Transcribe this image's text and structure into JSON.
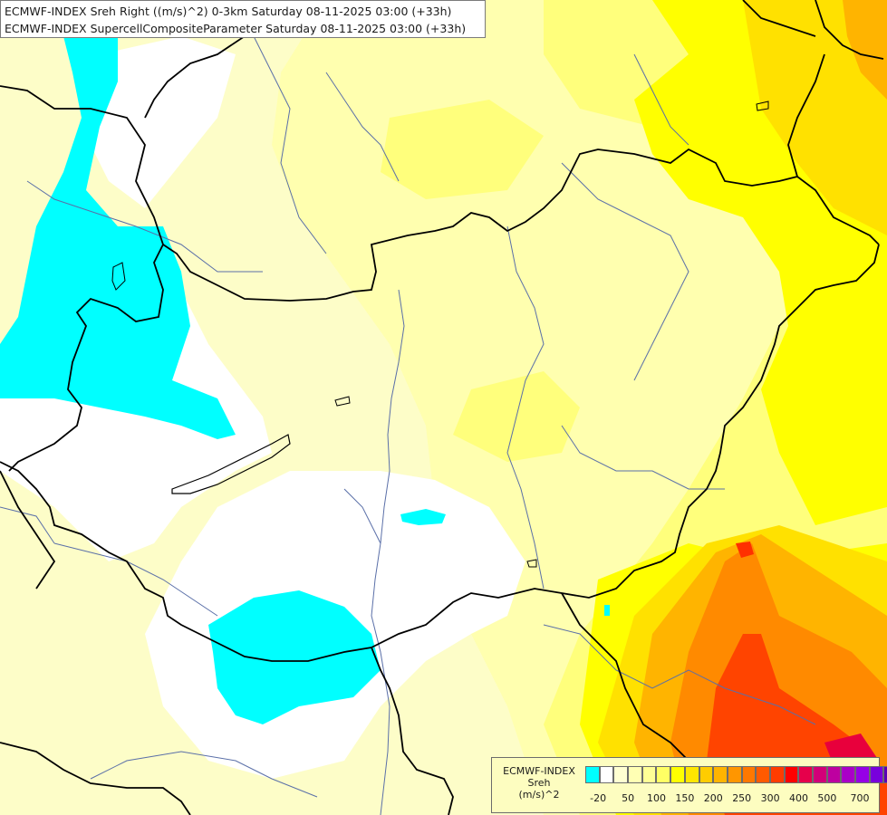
{
  "title": {
    "line1": "ECMWF-INDEX Sreh Right ((m/s)^2) 0-3km Saturday 08-11-2025 03:00 (+33h)",
    "line2": "ECMWF-INDEX SupercellCompositeParameter Saturday 08-11-2025 03:00 (+33h)"
  },
  "legend": {
    "source": "ECMWF-INDEX",
    "variable": "Sreh",
    "unit": "(m/s)^2",
    "colors": [
      "#00ffff",
      "#ffffff",
      "#ffffd2",
      "#ffffb4",
      "#ffff96",
      "#ffff64",
      "#ffff00",
      "#ffe600",
      "#ffcc00",
      "#ffb400",
      "#ff9600",
      "#ff7800",
      "#ff5a00",
      "#ff3c00",
      "#ff0000",
      "#e6004b",
      "#d20078",
      "#be00a0",
      "#aa00c8",
      "#9600e6",
      "#7800dc",
      "#5a00b4",
      "#3c0096",
      "#1e0078"
    ],
    "ticks": [
      "-20",
      "50",
      "100",
      "150",
      "200",
      "250",
      "300",
      "400",
      "500",
      "700"
    ]
  },
  "map_colors": {
    "bg": "#fdfdc8",
    "pale": "#ffffb0",
    "lightyellow": "#ffff80",
    "yellow": "#ffff00",
    "gold": "#ffe000",
    "orange": "#ffb000",
    "deeporange": "#ff8000",
    "red": "#ff3000",
    "crimson": "#e8003c",
    "cyan": "#00ffff",
    "white": "#ffffff",
    "border": "#000000",
    "river": "#5a6fa8"
  }
}
